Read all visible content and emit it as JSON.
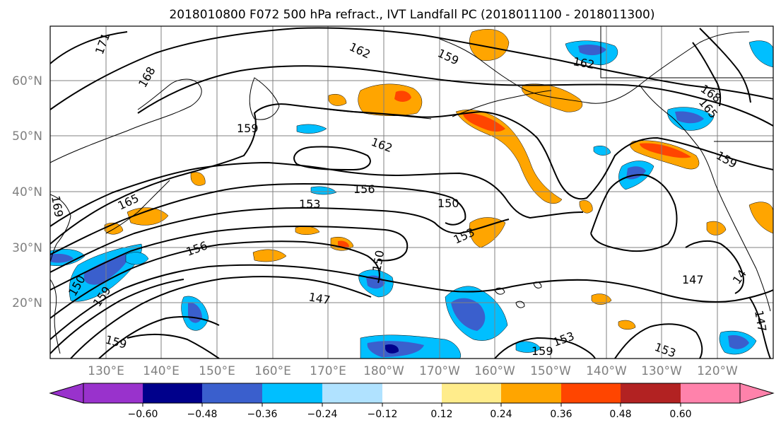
{
  "title": "2018010800 F072 500 hPa refract., IVT Landfall PC (2018011100 - 2018011300)",
  "lat_labels": [
    "60°N",
    "50°N",
    "40°N",
    "30°N",
    "20°N"
  ],
  "lon_labels": [
    "130°E",
    "140°E",
    "150°E",
    "160°E",
    "170°E",
    "180°W",
    "170°W",
    "160°W",
    "150°W",
    "140°W",
    "130°W",
    "120°W"
  ],
  "colorbar": {
    "ticks": [
      "−0.60",
      "−0.48",
      "−0.36",
      "−0.24",
      "−0.12",
      "0.12",
      "0.24",
      "0.36",
      "0.48",
      "0.60"
    ],
    "colors": [
      "#9932cc",
      "#00008b",
      "#3a5fcd",
      "#00bfff",
      "#b0e2ff",
      "#ffffff",
      "#ffec8b",
      "#ffa500",
      "#ff4500",
      "#b22222",
      "#ff82ab"
    ]
  },
  "contour_labels": [
    "171",
    "168",
    "162",
    "159",
    "162",
    "168",
    "165",
    "159",
    "162",
    "156",
    "153",
    "159",
    "165",
    "169",
    "153",
    "150",
    "156",
    "159",
    "150",
    "147",
    "150",
    "147",
    "14",
    "153",
    "159",
    "153",
    "147",
    "159"
  ],
  "colors": {
    "frame": "#000000",
    "grid": "#808080",
    "contour": "#000000",
    "axis_text": "#808080"
  }
}
